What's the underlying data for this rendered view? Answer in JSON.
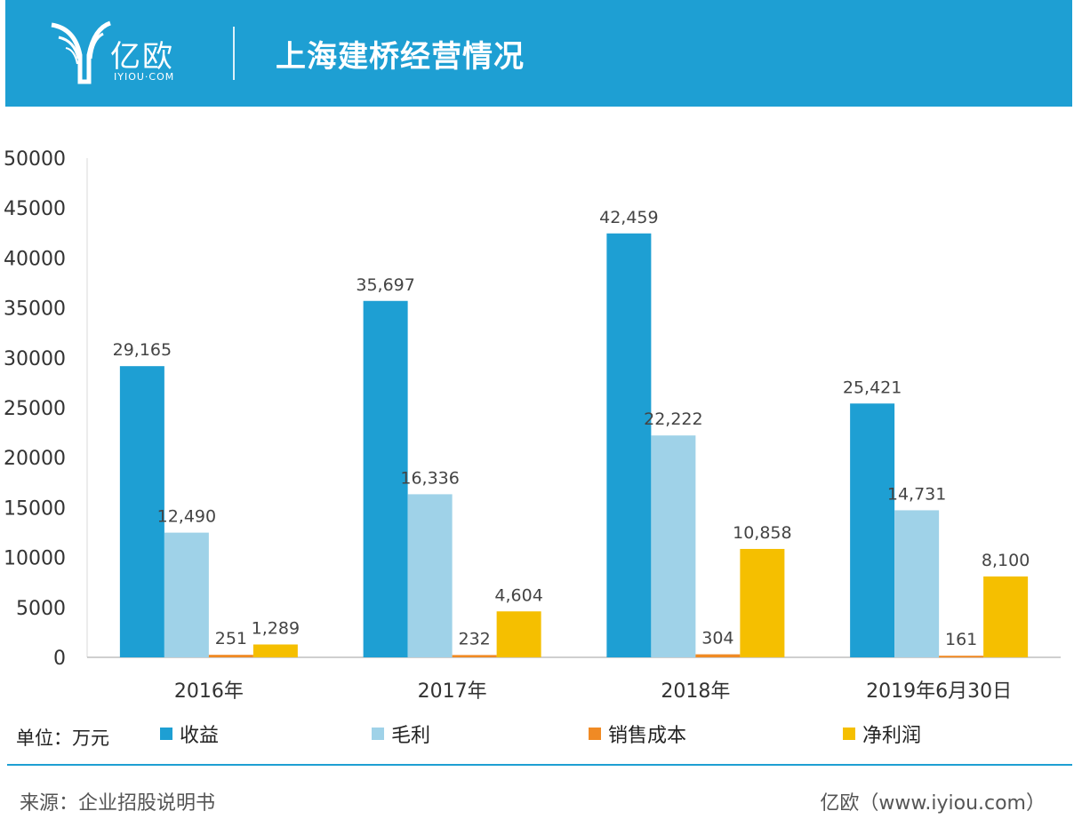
{
  "header": {
    "logo_text": "亿欧",
    "logo_sub": "IYIOU·COM",
    "title": "上海建桥经营情况"
  },
  "colors": {
    "header_bg": "#1e9fd3",
    "revenue": "#1e9fd3",
    "gross_profit": "#9fd2e8",
    "selling_cost": "#f08a24",
    "net_profit": "#f5bf00"
  },
  "chart_data": {
    "type": "bar",
    "categories": [
      "2016年",
      "2017年",
      "2018年",
      "2019年6月30日"
    ],
    "series": [
      {
        "name": "收益",
        "values": [
          29165,
          35697,
          42459,
          25421
        ],
        "labels": [
          "29,165",
          "35,697",
          "42,459",
          "25,421"
        ]
      },
      {
        "name": "毛利",
        "values": [
          12490,
          16336,
          22222,
          14731
        ],
        "labels": [
          "12,490",
          "16,336",
          "22,222",
          "14,731"
        ]
      },
      {
        "name": "销售成本",
        "values": [
          251,
          232,
          304,
          161
        ],
        "labels": [
          "251",
          "232",
          "304",
          "161"
        ]
      },
      {
        "name": "净利润",
        "values": [
          1289,
          4604,
          10858,
          8100
        ],
        "labels": [
          "1,289",
          "4,604",
          "10,858",
          "8,100"
        ]
      }
    ],
    "yticks": [
      "0",
      "5000",
      "10000",
      "15000",
      "20000",
      "25000",
      "30000",
      "35000",
      "40000",
      "45000",
      "50000"
    ],
    "ylim": [
      0,
      50000
    ],
    "grid": false,
    "legend": "bottom"
  },
  "legend_unit": "单位：万元",
  "footer": {
    "source": "来源：企业招股说明书",
    "site": "亿欧（www.iyiou.com）"
  }
}
